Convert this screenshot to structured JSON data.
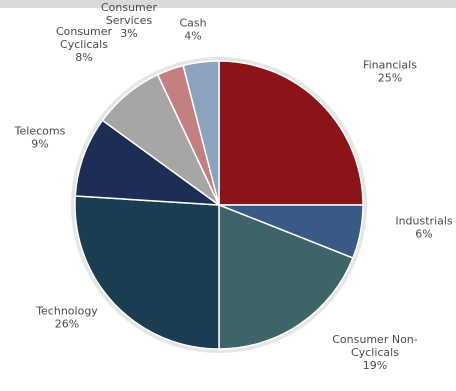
{
  "chart_data": {
    "type": "pie",
    "title": "",
    "legend": "none",
    "slices": [
      {
        "label_lines": [
          "Financials"
        ],
        "value": 25,
        "value_text": "25%",
        "color": "#8b1418"
      },
      {
        "label_lines": [
          "Industrials"
        ],
        "value": 6,
        "value_text": "6%",
        "color": "#3a5a86"
      },
      {
        "label_lines": [
          "Consumer Non-",
          "Cyclicals"
        ],
        "value": 19,
        "value_text": "19%",
        "color": "#3d6467"
      },
      {
        "label_lines": [
          "Technology"
        ],
        "value": 26,
        "value_text": "26%",
        "color": "#1a3d52"
      },
      {
        "label_lines": [
          "Telecoms"
        ],
        "value": 9,
        "value_text": "9%",
        "color": "#1e2d55"
      },
      {
        "label_lines": [
          "Consumer",
          "Cyclicals"
        ],
        "value": 8,
        "value_text": "8%",
        "color": "#a6a6a6"
      },
      {
        "label_lines": [
          "Consumer",
          "Services"
        ],
        "value": 3,
        "value_text": "3%",
        "color": "#c48080"
      },
      {
        "label_lines": [
          "Cash"
        ],
        "value": 4,
        "value_text": "4%",
        "color": "#8da2bd"
      }
    ]
  }
}
